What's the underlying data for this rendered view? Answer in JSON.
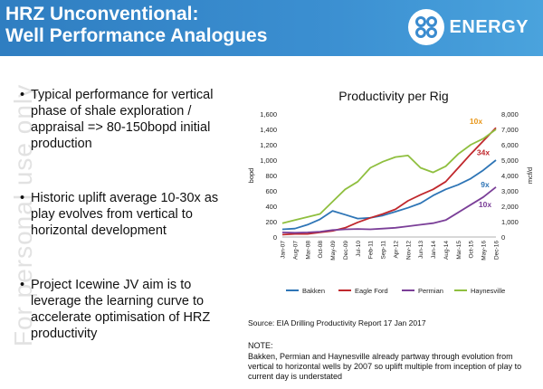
{
  "header": {
    "title_line1": "HRZ Unconventional:",
    "title_line2": "Well Performance Analogues",
    "logo_text": "ENERGY",
    "logo_mark": "88"
  },
  "watermark": "For personal use only",
  "bullets": [
    {
      "text": "Typical performance for vertical phase of shale exploration / appraisal => 80-150bopd initial production"
    },
    {
      "text": "Historic uplift average 10-30x as play evolves from vertical to horizontal development"
    },
    {
      "text": "Project Icewine JV aim is to leverage the learning curve  to accelerate optimisation of HRZ productivity"
    }
  ],
  "source": "Source: EIA Drilling Productivity Report 17 Jan 2017",
  "note_heading": "NOTE:",
  "note_text": "Bakken, Permian and Haynesville already partway through evolution from vertical to horizontal wells by 2007 so uplift multiple from inception of play to current day is understated",
  "colors": {
    "header_blue": "#3a8bcf",
    "bakken": "#2e75b6",
    "eagle_ford": "#c0282d",
    "permian": "#7b3f98",
    "haynesville": "#8fbf3f",
    "annotation_orange": "#e8971b"
  },
  "chart_data": {
    "type": "line",
    "title": "Productivity per Rig",
    "ylabel": "bopd",
    "y2label": "mcf/d",
    "ylim": [
      0,
      1600
    ],
    "y2lim": [
      0,
      8000
    ],
    "yticks": [
      "0",
      "200",
      "400",
      "600",
      "800",
      "1,000",
      "1,200",
      "1,400",
      "1,600"
    ],
    "y2ticks": [
      "0",
      "1,000",
      "2,000",
      "3,000",
      "4,000",
      "5,000",
      "6,000",
      "7,000",
      "8,000"
    ],
    "x": [
      "Jan-07",
      "Aug-07",
      "Mar-08",
      "Oct-08",
      "May-09",
      "Dec-09",
      "Jul-10",
      "Feb-11",
      "Sep-11",
      "Apr-12",
      "Nov-12",
      "Jun-13",
      "Jan-14",
      "Aug-14",
      "Mar-15",
      "Oct-15",
      "May-16",
      "Dec-16"
    ],
    "legend_position": "bottom",
    "series": [
      {
        "name": "Bakken",
        "axis": "left",
        "color": "#2e75b6",
        "values": [
          100,
          110,
          160,
          230,
          340,
          290,
          240,
          250,
          280,
          330,
          380,
          440,
          540,
          620,
          680,
          760,
          870,
          1000
        ]
      },
      {
        "name": "Eagle Ford",
        "axis": "left",
        "color": "#c0282d",
        "values": [
          30,
          40,
          40,
          60,
          80,
          120,
          190,
          250,
          300,
          360,
          470,
          550,
          620,
          720,
          900,
          1080,
          1250,
          1420
        ]
      },
      {
        "name": "Permian",
        "axis": "left",
        "color": "#7b3f98",
        "values": [
          60,
          55,
          60,
          70,
          90,
          100,
          105,
          100,
          110,
          120,
          140,
          160,
          180,
          220,
          320,
          420,
          520,
          650
        ]
      },
      {
        "name": "Haynesville",
        "axis": "right",
        "color": "#8fbf3f",
        "values": [
          900,
          1100,
          1300,
          1500,
          2300,
          3100,
          3600,
          4500,
          4900,
          5200,
          5300,
          4500,
          4200,
          4600,
          5400,
          6000,
          6400,
          7000
        ]
      }
    ],
    "annotations": [
      {
        "text": "10x",
        "color": "#e8971b"
      },
      {
        "text": "34x",
        "color": "#c0282d"
      },
      {
        "text": "9x",
        "color": "#2e75b6"
      },
      {
        "text": "10x",
        "color": "#7b3f98"
      }
    ]
  }
}
